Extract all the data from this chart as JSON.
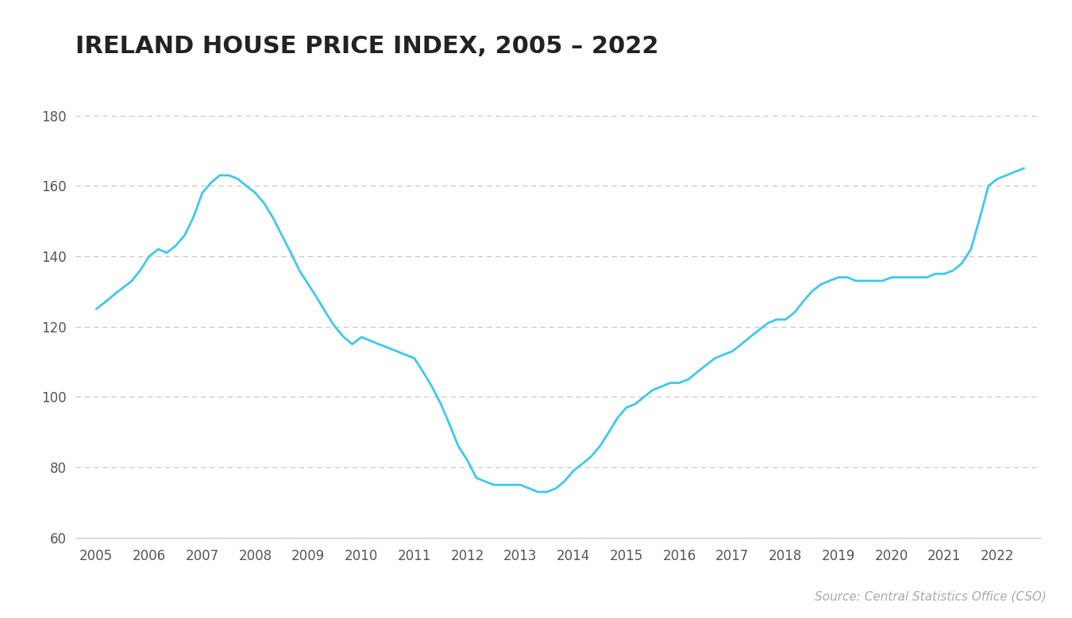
{
  "title": "IRELAND HOUSE PRICE INDEX, 2005 – 2022",
  "source_text": "Source: Central Statistics Office (CSO)",
  "line_color": "#3ec8f0",
  "background_color": "#ffffff",
  "grid_color": "#c8c8c8",
  "title_color": "#222222",
  "tick_color": "#555555",
  "ylim": [
    60,
    190
  ],
  "yticks": [
    60,
    80,
    100,
    120,
    140,
    160,
    180
  ],
  "years": [
    2005,
    2006,
    2007,
    2008,
    2009,
    2010,
    2011,
    2012,
    2013,
    2014,
    2015,
    2016,
    2017,
    2018,
    2019,
    2020,
    2021,
    2022
  ],
  "x": [
    2005.0,
    2005.17,
    2005.33,
    2005.5,
    2005.67,
    2005.83,
    2006.0,
    2006.17,
    2006.33,
    2006.5,
    2006.67,
    2006.83,
    2007.0,
    2007.17,
    2007.33,
    2007.5,
    2007.67,
    2007.83,
    2008.0,
    2008.17,
    2008.33,
    2008.5,
    2008.67,
    2008.83,
    2009.0,
    2009.17,
    2009.33,
    2009.5,
    2009.67,
    2009.83,
    2010.0,
    2010.17,
    2010.33,
    2010.5,
    2010.67,
    2010.83,
    2011.0,
    2011.17,
    2011.33,
    2011.5,
    2011.67,
    2011.83,
    2012.0,
    2012.17,
    2012.33,
    2012.5,
    2012.67,
    2012.83,
    2013.0,
    2013.17,
    2013.33,
    2013.5,
    2013.67,
    2013.83,
    2014.0,
    2014.17,
    2014.33,
    2014.5,
    2014.67,
    2014.83,
    2015.0,
    2015.17,
    2015.33,
    2015.5,
    2015.67,
    2015.83,
    2016.0,
    2016.17,
    2016.33,
    2016.5,
    2016.67,
    2016.83,
    2017.0,
    2017.17,
    2017.33,
    2017.5,
    2017.67,
    2017.83,
    2018.0,
    2018.17,
    2018.33,
    2018.5,
    2018.67,
    2018.83,
    2019.0,
    2019.17,
    2019.33,
    2019.5,
    2019.67,
    2019.83,
    2020.0,
    2020.17,
    2020.33,
    2020.5,
    2020.67,
    2020.83,
    2021.0,
    2021.17,
    2021.33,
    2021.5,
    2021.67,
    2021.83,
    2022.0,
    2022.17,
    2022.33,
    2022.5
  ],
  "y": [
    125,
    127,
    129,
    131,
    133,
    136,
    140,
    142,
    141,
    143,
    146,
    151,
    158,
    161,
    163,
    163,
    162,
    160,
    158,
    155,
    151,
    146,
    141,
    136,
    132,
    128,
    124,
    120,
    117,
    115,
    117,
    116,
    115,
    114,
    113,
    112,
    111,
    107,
    103,
    98,
    92,
    86,
    82,
    77,
    76,
    75,
    75,
    75,
    75,
    74,
    73,
    73,
    74,
    76,
    79,
    81,
    83,
    86,
    90,
    94,
    97,
    98,
    100,
    102,
    103,
    104,
    104,
    105,
    107,
    109,
    111,
    112,
    113,
    115,
    117,
    119,
    121,
    122,
    122,
    124,
    127,
    130,
    132,
    133,
    134,
    134,
    133,
    133,
    133,
    133,
    134,
    134,
    134,
    134,
    134,
    135,
    135,
    136,
    138,
    142,
    151,
    160,
    162,
    163,
    164,
    165
  ]
}
